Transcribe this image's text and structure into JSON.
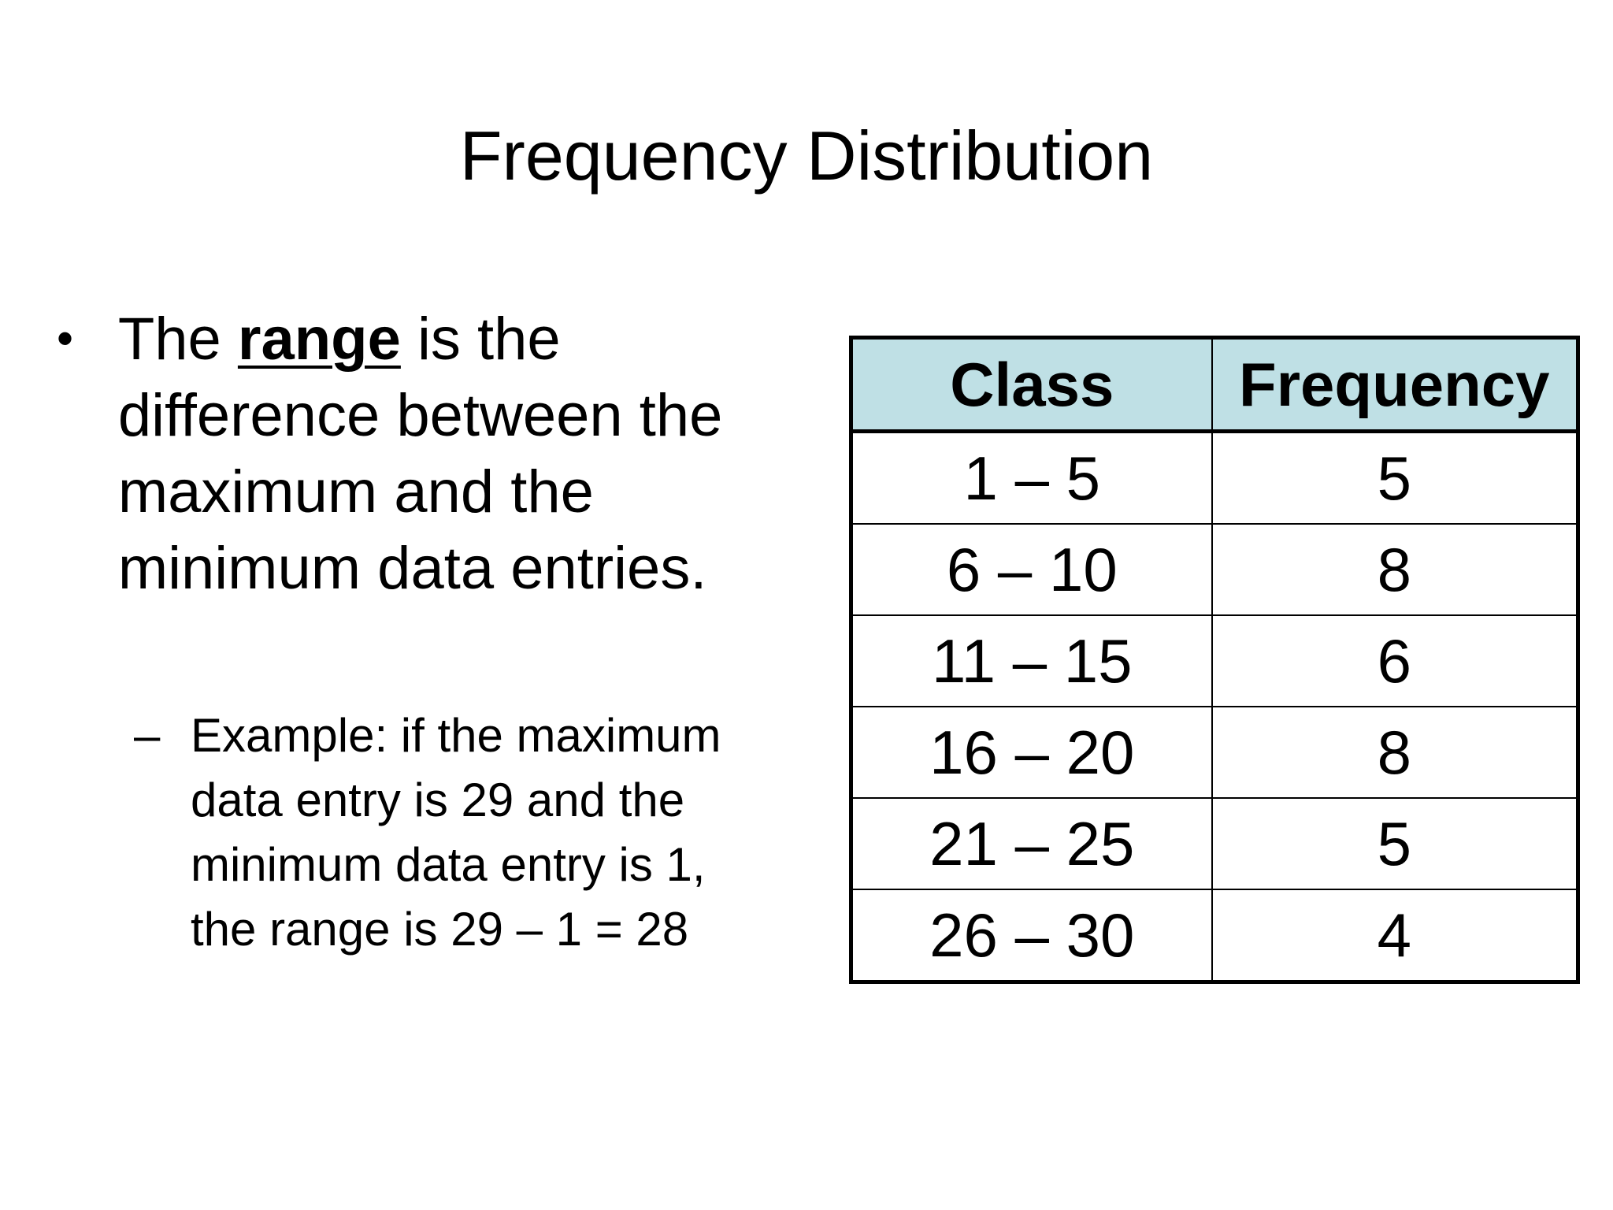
{
  "slide": {
    "title": "Frequency Distribution",
    "bullet": {
      "symbol": "•",
      "prefix": "The ",
      "term": "range",
      "suffix": " is the difference between the maximum and the minimum data entries."
    },
    "sub_bullet": {
      "symbol": "–",
      "text": "Example: if the maximum data entry is 29 and the minimum data entry is 1, the range is 29 – 1 = 28"
    }
  },
  "table": {
    "header_color": "#bfe0e5",
    "columns": [
      "Class",
      "Frequency"
    ],
    "rows": [
      [
        "1 – 5",
        "5"
      ],
      [
        "6 – 10",
        "8"
      ],
      [
        "11 – 15",
        "6"
      ],
      [
        "16 – 20",
        "8"
      ],
      [
        "21 – 25",
        "5"
      ],
      [
        "26 – 30",
        "4"
      ]
    ]
  }
}
